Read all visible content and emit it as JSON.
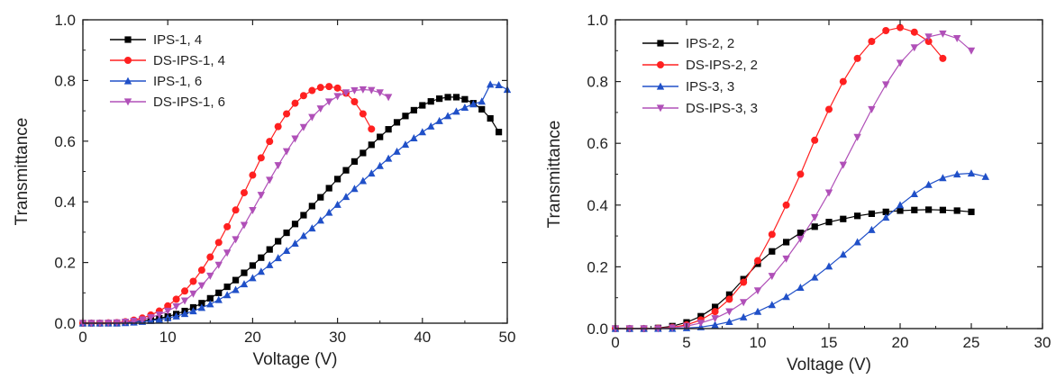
{
  "chart_data": [
    {
      "type": "line",
      "xlabel": "Voltage (V)",
      "ylabel": "Transmittance",
      "xlim": [
        0,
        50
      ],
      "ylim": [
        0,
        1.0
      ],
      "xticks": [
        "0",
        "10",
        "20",
        "30",
        "40",
        "50"
      ],
      "yticks": [
        "0.0",
        "0.2",
        "0.4",
        "0.6",
        "0.8",
        "1.0"
      ],
      "legend_position": "top-left",
      "series": [
        {
          "name": "IPS-1, 4",
          "color": "#000000",
          "marker": "square",
          "x": [
            0,
            1,
            2,
            3,
            4,
            5,
            6,
            7,
            8,
            9,
            10,
            11,
            12,
            13,
            14,
            15,
            16,
            17,
            18,
            19,
            20,
            21,
            22,
            23,
            24,
            25,
            26,
            27,
            28,
            29,
            30,
            31,
            32,
            33,
            34,
            35,
            36,
            37,
            38,
            39,
            40,
            41,
            42,
            43,
            44,
            45,
            46,
            47,
            48,
            49
          ],
          "y": [
            0,
            0,
            0,
            0,
            0,
            0.002,
            0.004,
            0.007,
            0.011,
            0.016,
            0.022,
            0.03,
            0.04,
            0.052,
            0.066,
            0.082,
            0.1,
            0.12,
            0.142,
            0.166,
            0.19,
            0.216,
            0.243,
            0.27,
            0.298,
            0.327,
            0.356,
            0.386,
            0.415,
            0.445,
            0.475,
            0.504,
            0.533,
            0.561,
            0.588,
            0.614,
            0.639,
            0.662,
            0.683,
            0.702,
            0.718,
            0.731,
            0.74,
            0.745,
            0.745,
            0.738,
            0.725,
            0.705,
            0.675,
            0.63
          ]
        },
        {
          "name": "DS-IPS-1, 4",
          "color": "#ff2020",
          "marker": "circle",
          "x": [
            0,
            1,
            2,
            3,
            4,
            5,
            6,
            7,
            8,
            9,
            10,
            11,
            12,
            13,
            14,
            15,
            16,
            17,
            18,
            19,
            20,
            21,
            22,
            23,
            24,
            25,
            26,
            27,
            28,
            29,
            30,
            31,
            32,
            33,
            34
          ],
          "y": [
            0,
            0,
            0,
            0.001,
            0.002,
            0.005,
            0.01,
            0.017,
            0.027,
            0.04,
            0.057,
            0.079,
            0.106,
            0.138,
            0.175,
            0.218,
            0.266,
            0.318,
            0.373,
            0.43,
            0.488,
            0.545,
            0.599,
            0.648,
            0.69,
            0.725,
            0.75,
            0.767,
            0.777,
            0.78,
            0.775,
            0.758,
            0.73,
            0.69,
            0.64
          ]
        },
        {
          "name": "IPS-1, 6",
          "color": "#2050c8",
          "marker": "triangle-up",
          "x": [
            0,
            1,
            2,
            3,
            4,
            5,
            6,
            7,
            8,
            9,
            10,
            11,
            12,
            13,
            14,
            15,
            16,
            17,
            18,
            19,
            20,
            21,
            22,
            23,
            24,
            25,
            26,
            27,
            28,
            29,
            30,
            31,
            32,
            33,
            34,
            35,
            36,
            37,
            38,
            39,
            40,
            41,
            42,
            43,
            44,
            45,
            46,
            47,
            48,
            49,
            50
          ],
          "y": [
            0,
            0,
            0,
            0,
            0,
            0.001,
            0.003,
            0.005,
            0.008,
            0.012,
            0.017,
            0.023,
            0.031,
            0.04,
            0.051,
            0.063,
            0.077,
            0.093,
            0.11,
            0.129,
            0.149,
            0.17,
            0.192,
            0.215,
            0.239,
            0.263,
            0.288,
            0.313,
            0.339,
            0.365,
            0.391,
            0.417,
            0.443,
            0.469,
            0.494,
            0.519,
            0.543,
            0.566,
            0.589,
            0.61,
            0.63,
            0.649,
            0.667,
            0.683,
            0.698,
            0.711,
            0.722,
            0.731,
            0.787,
            0.785,
            0.77
          ]
        },
        {
          "name": "DS-IPS-1, 6",
          "color": "#b050b8",
          "marker": "triangle-down",
          "x": [
            0,
            1,
            2,
            3,
            4,
            5,
            6,
            7,
            8,
            9,
            10,
            11,
            12,
            13,
            14,
            15,
            16,
            17,
            18,
            19,
            20,
            21,
            22,
            23,
            24,
            25,
            26,
            27,
            28,
            29,
            30,
            31,
            32,
            33,
            34,
            35,
            36
          ],
          "y": [
            0,
            0,
            0,
            0.001,
            0.002,
            0.004,
            0.007,
            0.012,
            0.019,
            0.028,
            0.04,
            0.055,
            0.074,
            0.097,
            0.124,
            0.156,
            0.192,
            0.232,
            0.276,
            0.323,
            0.372,
            0.422,
            0.472,
            0.52,
            0.566,
            0.608,
            0.646,
            0.679,
            0.707,
            0.73,
            0.748,
            0.76,
            0.767,
            0.77,
            0.768,
            0.76,
            0.745
          ]
        }
      ]
    },
    {
      "type": "line",
      "xlabel": "Voltage (V)",
      "ylabel": "Transmittance",
      "xlim": [
        0,
        30
      ],
      "ylim": [
        0,
        1.0
      ],
      "xticks": [
        "0",
        "5",
        "10",
        "15",
        "20",
        "25",
        "30"
      ],
      "yticks": [
        "0.0",
        "0.2",
        "0.4",
        "0.6",
        "0.8",
        "1.0"
      ],
      "legend_position": "top-left",
      "series": [
        {
          "name": "IPS-2, 2",
          "color": "#000000",
          "marker": "square",
          "x": [
            0,
            1,
            2,
            3,
            4,
            5,
            6,
            7,
            8,
            9,
            10,
            11,
            12,
            13,
            14,
            15,
            16,
            17,
            18,
            19,
            20,
            21,
            22,
            23,
            24,
            25
          ],
          "y": [
            0,
            0,
            0,
            0.002,
            0.008,
            0.02,
            0.04,
            0.07,
            0.11,
            0.16,
            0.21,
            0.25,
            0.28,
            0.31,
            0.33,
            0.345,
            0.355,
            0.365,
            0.372,
            0.378,
            0.382,
            0.384,
            0.385,
            0.384,
            0.382,
            0.378
          ]
        },
        {
          "name": "DS-IPS-2, 2",
          "color": "#ff2020",
          "marker": "circle",
          "x": [
            0,
            1,
            2,
            3,
            4,
            5,
            6,
            7,
            8,
            9,
            10,
            11,
            12,
            13,
            14,
            15,
            16,
            17,
            18,
            19,
            20,
            21,
            22,
            23
          ],
          "y": [
            0,
            0,
            0,
            0.001,
            0.004,
            0.012,
            0.028,
            0.055,
            0.095,
            0.15,
            0.22,
            0.305,
            0.4,
            0.5,
            0.61,
            0.71,
            0.8,
            0.875,
            0.93,
            0.965,
            0.975,
            0.96,
            0.93,
            0.875
          ]
        },
        {
          "name": "IPS-3, 3",
          "color": "#2050c8",
          "marker": "triangle-up",
          "x": [
            0,
            1,
            2,
            3,
            4,
            5,
            6,
            7,
            8,
            9,
            10,
            11,
            12,
            13,
            14,
            15,
            16,
            17,
            18,
            19,
            20,
            21,
            22,
            23,
            24,
            25,
            26
          ],
          "y": [
            0,
            0,
            0,
            0,
            0,
            0.002,
            0.005,
            0.012,
            0.022,
            0.037,
            0.055,
            0.077,
            0.103,
            0.133,
            0.166,
            0.202,
            0.24,
            0.28,
            0.32,
            0.36,
            0.4,
            0.436,
            0.466,
            0.488,
            0.5,
            0.503,
            0.492
          ]
        },
        {
          "name": "DS-IPS-3, 3",
          "color": "#b050b8",
          "marker": "triangle-down",
          "x": [
            0,
            1,
            2,
            3,
            4,
            5,
            6,
            7,
            8,
            9,
            10,
            11,
            12,
            13,
            14,
            15,
            16,
            17,
            18,
            19,
            20,
            21,
            22,
            23,
            24,
            25
          ],
          "y": [
            0,
            0,
            0,
            0,
            0.003,
            0.008,
            0.018,
            0.033,
            0.055,
            0.085,
            0.123,
            0.17,
            0.226,
            0.29,
            0.36,
            0.44,
            0.53,
            0.62,
            0.71,
            0.79,
            0.86,
            0.91,
            0.945,
            0.955,
            0.94,
            0.9
          ]
        }
      ]
    }
  ]
}
